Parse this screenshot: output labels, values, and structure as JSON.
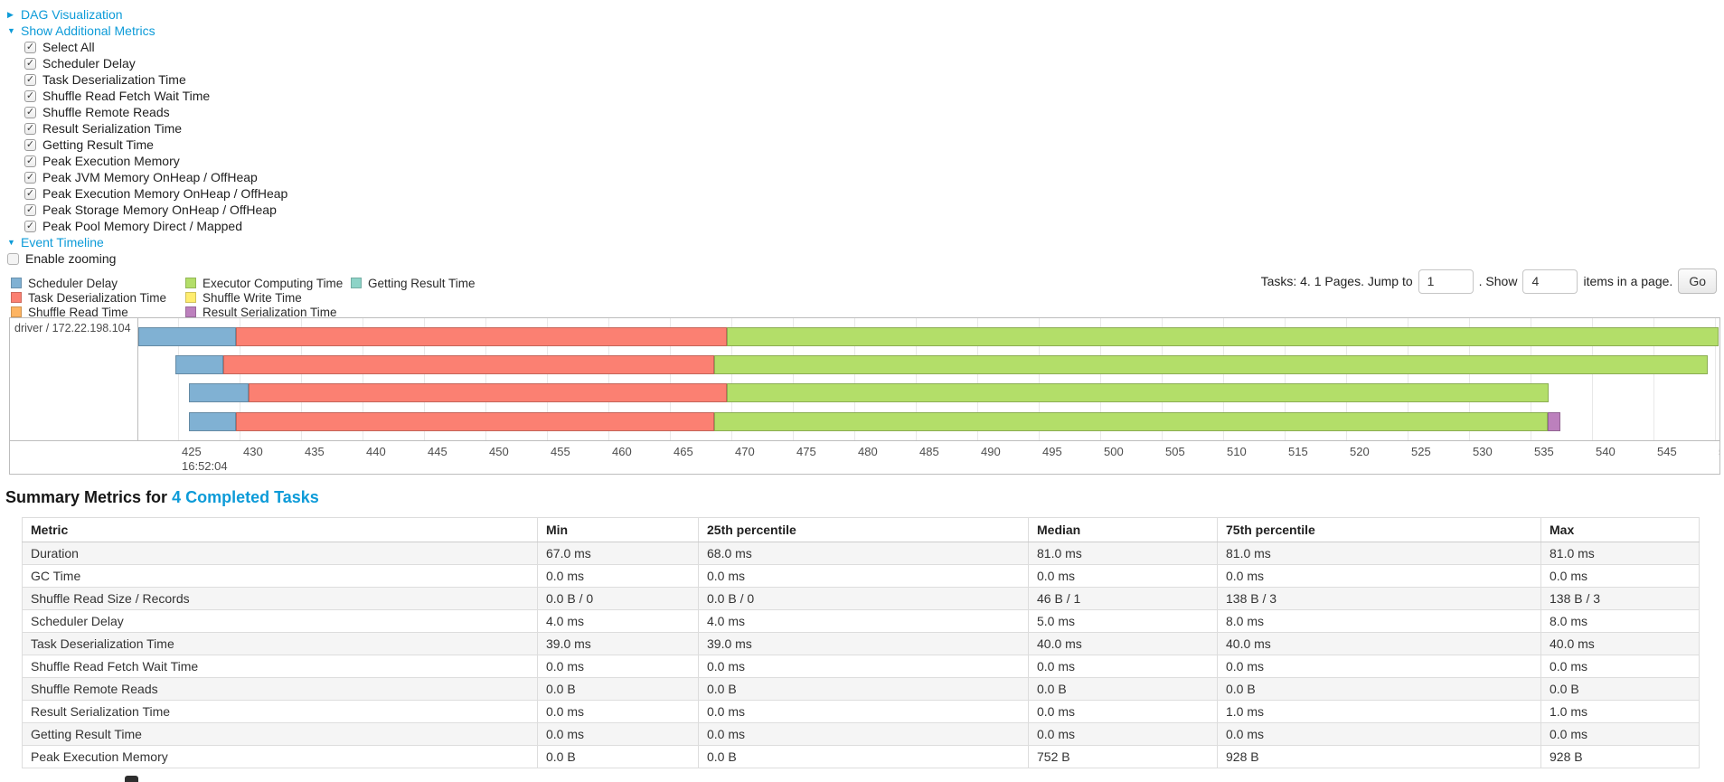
{
  "colors": {
    "link": "#0d9bd8"
  },
  "controls": {
    "dag_label": "DAG Visualization",
    "metrics_label": "Show Additional Metrics",
    "metrics_items": [
      "Select All",
      "Scheduler Delay",
      "Task Deserialization Time",
      "Shuffle Read Fetch Wait Time",
      "Shuffle Remote Reads",
      "Result Serialization Time",
      "Getting Result Time",
      "Peak Execution Memory",
      "Peak JVM Memory OnHeap / OffHeap",
      "Peak Execution Memory OnHeap / OffHeap",
      "Peak Storage Memory OnHeap / OffHeap",
      "Peak Pool Memory Direct / Mapped"
    ],
    "event_timeline_label": "Event Timeline",
    "enable_zooming_label": "Enable zooming"
  },
  "legend": {
    "columns": [
      [
        {
          "label": "Scheduler Delay",
          "color": "#80B1D3"
        },
        {
          "label": "Task Deserialization Time",
          "color": "#FB8072"
        },
        {
          "label": "Shuffle Read Time",
          "color": "#FDB462"
        }
      ],
      [
        {
          "label": "Executor Computing Time",
          "color": "#B3DE69"
        },
        {
          "label": "Shuffle Write Time",
          "color": "#FFED6F"
        },
        {
          "label": "Result Serialization Time",
          "color": "#BC80BD"
        }
      ],
      [
        {
          "label": "Getting Result Time",
          "color": "#8DD3C7"
        }
      ]
    ]
  },
  "pagination": {
    "prefix_text": "Tasks: 4. 1 Pages. Jump to",
    "jump_value": "1",
    "show_text": ". Show",
    "show_value": "4",
    "suffix_text": "items in a page.",
    "go_label": "Go"
  },
  "chart_data": {
    "type": "timeline",
    "group_label": "driver / 172.22.198.104",
    "axis": {
      "tick_start": 425,
      "tick_end": 550,
      "tick_step": 5,
      "major_label": "16:52:04"
    },
    "colors": {
      "scheduler_delay": "#80B1D3",
      "task_deserialization": "#FB8072",
      "shuffle_read": "#FDB462",
      "executor_computing": "#B3DE69",
      "shuffle_write": "#FFED6F",
      "result_serialization": "#BC80BD",
      "getting_result": "#8DD3C7"
    },
    "tasks": [
      {
        "segments": [
          {
            "type": "scheduler_delay",
            "start": 421.8,
            "end": 429.7
          },
          {
            "type": "task_deserialization",
            "start": 429.7,
            "end": 469.6
          },
          {
            "type": "executor_computing",
            "start": 469.6,
            "end": 550.3
          }
        ]
      },
      {
        "segments": [
          {
            "type": "scheduler_delay",
            "start": 424.8,
            "end": 428.7
          },
          {
            "type": "task_deserialization",
            "start": 428.7,
            "end": 468.6
          },
          {
            "type": "executor_computing",
            "start": 468.6,
            "end": 549.4
          }
        ]
      },
      {
        "segments": [
          {
            "type": "scheduler_delay",
            "start": 425.9,
            "end": 430.7
          },
          {
            "type": "task_deserialization",
            "start": 430.7,
            "end": 469.6
          },
          {
            "type": "executor_computing",
            "start": 469.6,
            "end": 536.5
          }
        ]
      },
      {
        "segments": [
          {
            "type": "scheduler_delay",
            "start": 425.9,
            "end": 429.7
          },
          {
            "type": "task_deserialization",
            "start": 429.7,
            "end": 468.6
          },
          {
            "type": "executor_computing",
            "start": 468.6,
            "end": 536.4
          },
          {
            "type": "result_serialization",
            "start": 536.4,
            "end": 537.4
          }
        ]
      }
    ]
  },
  "summary": {
    "heading_prefix": "Summary Metrics for ",
    "heading_link": "4 Completed Tasks"
  },
  "summary_table": {
    "columns": [
      "Metric",
      "Min",
      "25th percentile",
      "Median",
      "75th percentile",
      "Max"
    ],
    "rows": [
      [
        "Duration",
        "67.0 ms",
        "68.0 ms",
        "81.0 ms",
        "81.0 ms",
        "81.0 ms"
      ],
      [
        "GC Time",
        "0.0 ms",
        "0.0 ms",
        "0.0 ms",
        "0.0 ms",
        "0.0 ms"
      ],
      [
        "Shuffle Read Size / Records",
        "0.0 B / 0",
        "0.0 B / 0",
        "46 B / 1",
        "138 B / 3",
        "138 B / 3"
      ],
      [
        "Scheduler Delay",
        "4.0 ms",
        "4.0 ms",
        "5.0 ms",
        "8.0 ms",
        "8.0 ms"
      ],
      [
        "Task Deserialization Time",
        "39.0 ms",
        "39.0 ms",
        "40.0 ms",
        "40.0 ms",
        "40.0 ms"
      ],
      [
        "Shuffle Read Fetch Wait Time",
        "0.0 ms",
        "0.0 ms",
        "0.0 ms",
        "0.0 ms",
        "0.0 ms"
      ],
      [
        "Shuffle Remote Reads",
        "0.0 B",
        "0.0 B",
        "0.0 B",
        "0.0 B",
        "0.0 B"
      ],
      [
        "Result Serialization Time",
        "0.0 ms",
        "0.0 ms",
        "0.0 ms",
        "1.0 ms",
        "1.0 ms"
      ],
      [
        "Getting Result Time",
        "0.0 ms",
        "0.0 ms",
        "0.0 ms",
        "0.0 ms",
        "0.0 ms"
      ],
      [
        "Peak Execution Memory",
        "0.0 B",
        "0.0 B",
        "752 B",
        "928 B",
        "928 B"
      ]
    ]
  }
}
